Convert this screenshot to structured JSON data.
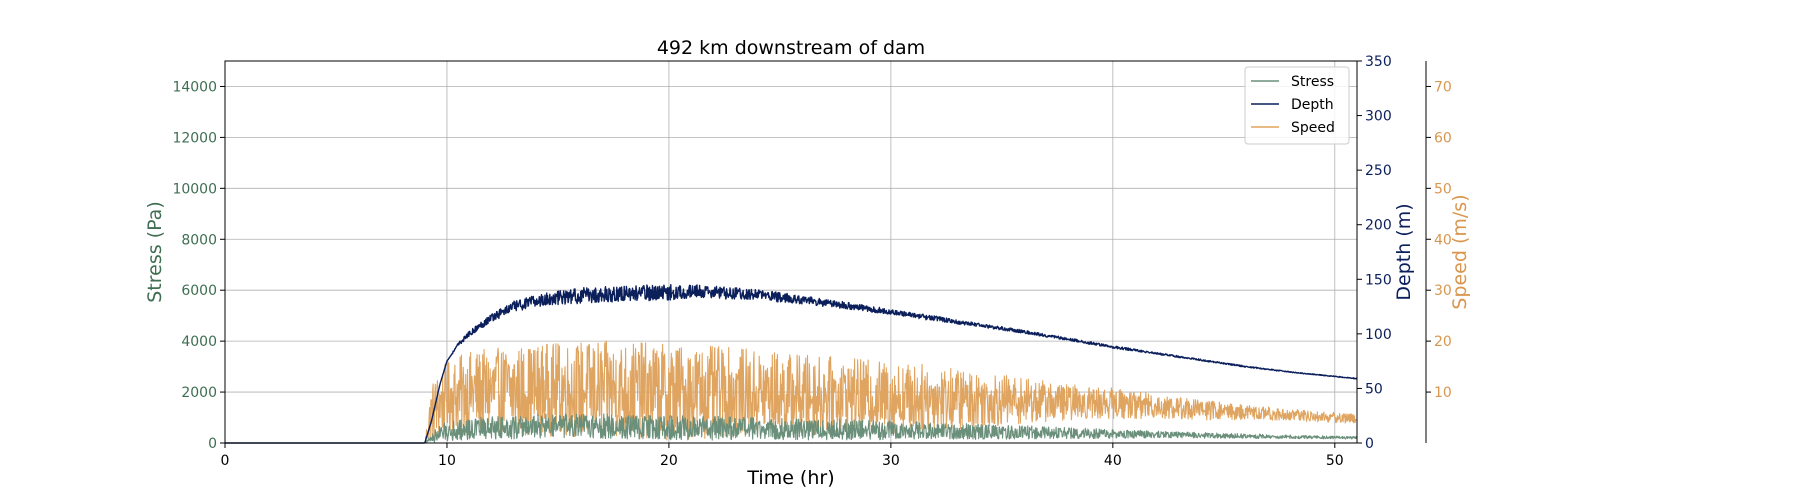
{
  "chart_data": {
    "type": "line",
    "title": "492 km downstream of dam",
    "xlabel": "Time (hr)",
    "xlim": [
      0,
      51
    ],
    "xticks": [
      0,
      10,
      20,
      30,
      40,
      50
    ],
    "grid": true,
    "legend_location": "upper right",
    "axes": [
      {
        "id": "stress",
        "label": "Stress (Pa)",
        "side": "left",
        "color": "#3f6e52",
        "ylim": [
          0,
          15000
        ],
        "ticks": [
          0,
          2000,
          4000,
          6000,
          8000,
          10000,
          12000,
          14000
        ]
      },
      {
        "id": "depth",
        "label": "Depth (m)",
        "side": "right",
        "color": "#0b1f5b",
        "ylim": [
          0,
          350
        ],
        "ticks": [
          0,
          50,
          100,
          150,
          200,
          250,
          300,
          350
        ]
      },
      {
        "id": "speed",
        "label": "Speed (m/s)",
        "side": "right-outer",
        "color": "#d9964e",
        "ylim": [
          0,
          75
        ],
        "ticks": [
          10,
          20,
          30,
          40,
          50,
          60,
          70
        ]
      }
    ],
    "series": [
      {
        "name": "Stress",
        "axis": "stress",
        "color": "#6a8f7a",
        "x": [
          0,
          9,
          9.5,
          10,
          11,
          12,
          14,
          16,
          18,
          20,
          22,
          24,
          26,
          28,
          30,
          32,
          34,
          36,
          38,
          40,
          42,
          44,
          46,
          48,
          50,
          51
        ],
        "y": [
          0,
          0,
          300,
          450,
          550,
          600,
          650,
          650,
          650,
          600,
          580,
          560,
          540,
          520,
          500,
          470,
          440,
          420,
          390,
          360,
          330,
          300,
          270,
          240,
          220,
          200
        ],
        "noise": [
          0,
          0,
          300,
          380,
          420,
          450,
          480,
          500,
          500,
          480,
          470,
          450,
          420,
          400,
          370,
          340,
          300,
          260,
          220,
          180,
          140,
          110,
          90,
          70,
          60,
          50
        ]
      },
      {
        "name": "Depth",
        "axis": "depth",
        "color": "#0b1f5b",
        "x": [
          0,
          9,
          9.3,
          9.7,
          10,
          10.5,
          11,
          12,
          13,
          14,
          15,
          16,
          18,
          20,
          21,
          22,
          24,
          26,
          28,
          30,
          32,
          34,
          36,
          38,
          40,
          42,
          44,
          46,
          48,
          50,
          51
        ],
        "y": [
          0,
          0,
          20,
          55,
          75,
          90,
          100,
          115,
          125,
          130,
          133,
          135,
          137,
          138,
          139,
          138,
          136,
          131,
          126,
          120,
          114,
          108,
          102,
          95,
          88,
          82,
          76,
          70,
          65,
          61,
          59
        ],
        "noise": [
          0,
          0,
          0,
          0,
          0,
          2,
          3,
          5,
          6,
          7,
          8,
          9,
          9,
          9,
          8,
          7,
          6,
          5,
          4,
          3,
          3,
          2,
          2,
          1.5,
          1.5,
          1,
          1,
          0.8,
          0.5,
          0.5,
          0.5
        ]
      },
      {
        "name": "Speed",
        "axis": "speed",
        "color": "#dfa45f",
        "x": [
          0,
          9,
          9.3,
          10,
          11,
          12,
          14,
          16,
          18,
          20,
          22,
          24,
          26,
          28,
          30,
          32,
          34,
          36,
          38,
          40,
          42,
          44,
          46,
          48,
          50,
          51
        ],
        "y": [
          0,
          0,
          6,
          9,
          10,
          10,
          10.5,
          10.5,
          10.5,
          10,
          10,
          9.8,
          9.5,
          9.2,
          9,
          8.8,
          8.5,
          8.3,
          8,
          7.8,
          7.2,
          6.5,
          6,
          5.5,
          5,
          4.8
        ],
        "noise": [
          0,
          0,
          6,
          7,
          8,
          8.5,
          9,
          9.5,
          9.5,
          9.5,
          9,
          8.5,
          8,
          7.5,
          7,
          6.5,
          5.5,
          4.5,
          3.5,
          3,
          2.5,
          2,
          1.5,
          1.2,
          1,
          1
        ]
      }
    ]
  }
}
